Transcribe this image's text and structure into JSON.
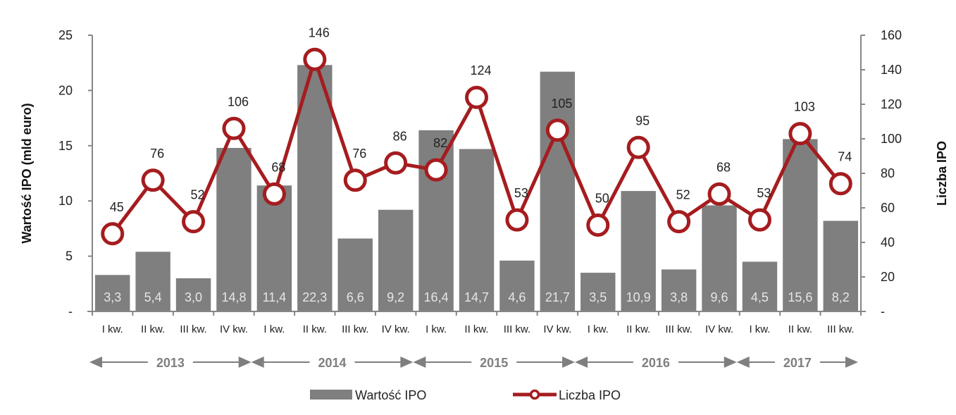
{
  "colors": {
    "bar": "#7f7f7f",
    "line": "#a51c1f",
    "axis": "#868686",
    "bar_label": "#e6e6e6",
    "year": "#7f7f7f"
  },
  "chart_data": {
    "type": "bar+line",
    "title": "",
    "categories": [
      "I kw.",
      "II kw.",
      "III kw.",
      "IV kw.",
      "I kw.",
      "II kw.",
      "III kw.",
      "IV kw.",
      "I kw.",
      "II kw.",
      "III kw.",
      "IV kw.",
      "I kw.",
      "II kw.",
      "III kw.",
      "IV kw.",
      "I kw.",
      "II kw.",
      "III kw."
    ],
    "years": [
      {
        "label": "2013",
        "start": 0,
        "end": 3
      },
      {
        "label": "2014",
        "start": 4,
        "end": 7
      },
      {
        "label": "2015",
        "start": 8,
        "end": 11
      },
      {
        "label": "2016",
        "start": 12,
        "end": 15
      },
      {
        "label": "2017",
        "start": 16,
        "end": 18
      }
    ],
    "series": [
      {
        "name": "Wartość IPO",
        "type": "bar",
        "axis": "left",
        "values": [
          3.3,
          5.4,
          3.0,
          14.8,
          11.4,
          22.3,
          6.6,
          9.2,
          16.4,
          14.7,
          4.6,
          21.7,
          3.5,
          10.9,
          3.8,
          9.6,
          4.5,
          15.6,
          8.2
        ],
        "labels": [
          "3,3",
          "5,4",
          "3,0",
          "14,8",
          "11,4",
          "22,3",
          "6,6",
          "9,2",
          "16,4",
          "14,7",
          "4,6",
          "21,7",
          "3,5",
          "10,9",
          "3,8",
          "9,6",
          "4,5",
          "15,6",
          "8,2"
        ]
      },
      {
        "name": "Liczba IPO",
        "type": "line",
        "axis": "right",
        "values": [
          45,
          76,
          52,
          106,
          68,
          146,
          76,
          86,
          82,
          124,
          53,
          105,
          50,
          95,
          52,
          68,
          53,
          103,
          74
        ],
        "labels": [
          "45",
          "76",
          "52",
          "106",
          "68",
          "146",
          "76",
          "86",
          "82",
          "124",
          "53",
          "105",
          "50",
          "95",
          "52",
          "68",
          "53",
          "103",
          "74"
        ]
      }
    ],
    "ylabel": "Wartość IPO (mld euro)",
    "ylabel_right": "Liczba IPO",
    "ylim": [
      0,
      25
    ],
    "ylim_right": [
      0,
      160
    ],
    "yticks": [
      "-",
      "5",
      "10",
      "15",
      "20",
      "25"
    ],
    "yticks_right": [
      "-",
      "20",
      "40",
      "60",
      "80",
      "100",
      "120",
      "140",
      "160"
    ],
    "grid": false,
    "legend_position": "bottom"
  },
  "legend": {
    "bar": "Wartość IPO",
    "line": "Liczba IPO"
  }
}
